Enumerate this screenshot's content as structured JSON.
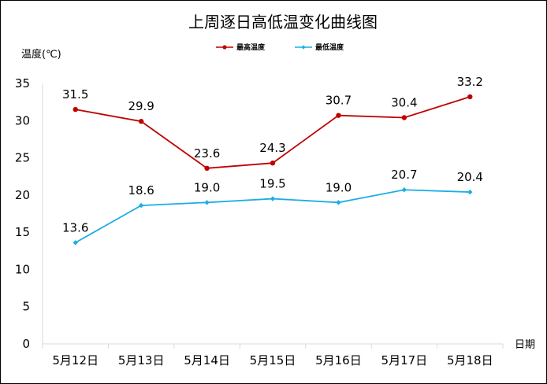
{
  "chart_data": {
    "type": "line",
    "title": "上周逐日高低温变化曲线图",
    "ylabel": "温度(℃)",
    "xlabel": "日期",
    "categories": [
      "5月12日",
      "5月13日",
      "5月14日",
      "5月15日",
      "5月16日",
      "5月17日",
      "5月18日"
    ],
    "ylim": [
      0,
      35
    ],
    "yticks": [
      0,
      5,
      10,
      15,
      20,
      25,
      30,
      35
    ],
    "grid": false,
    "legend_position": "top",
    "series": [
      {
        "name": "最高温度",
        "color": "#c00000",
        "marker": "circle",
        "values": [
          31.5,
          29.9,
          23.6,
          24.3,
          30.7,
          30.4,
          33.2
        ],
        "labels": [
          "31.5",
          "29.9",
          "23.6",
          "24.3",
          "30.7",
          "30.4",
          "33.2"
        ]
      },
      {
        "name": "最低温度",
        "color": "#1aaee5",
        "marker": "diamond",
        "values": [
          13.6,
          18.6,
          19.0,
          19.5,
          19.0,
          20.7,
          20.4
        ],
        "labels": [
          "13.6",
          "18.6",
          "19.0",
          "19.5",
          "19.0",
          "20.7",
          "20.4"
        ]
      }
    ]
  }
}
